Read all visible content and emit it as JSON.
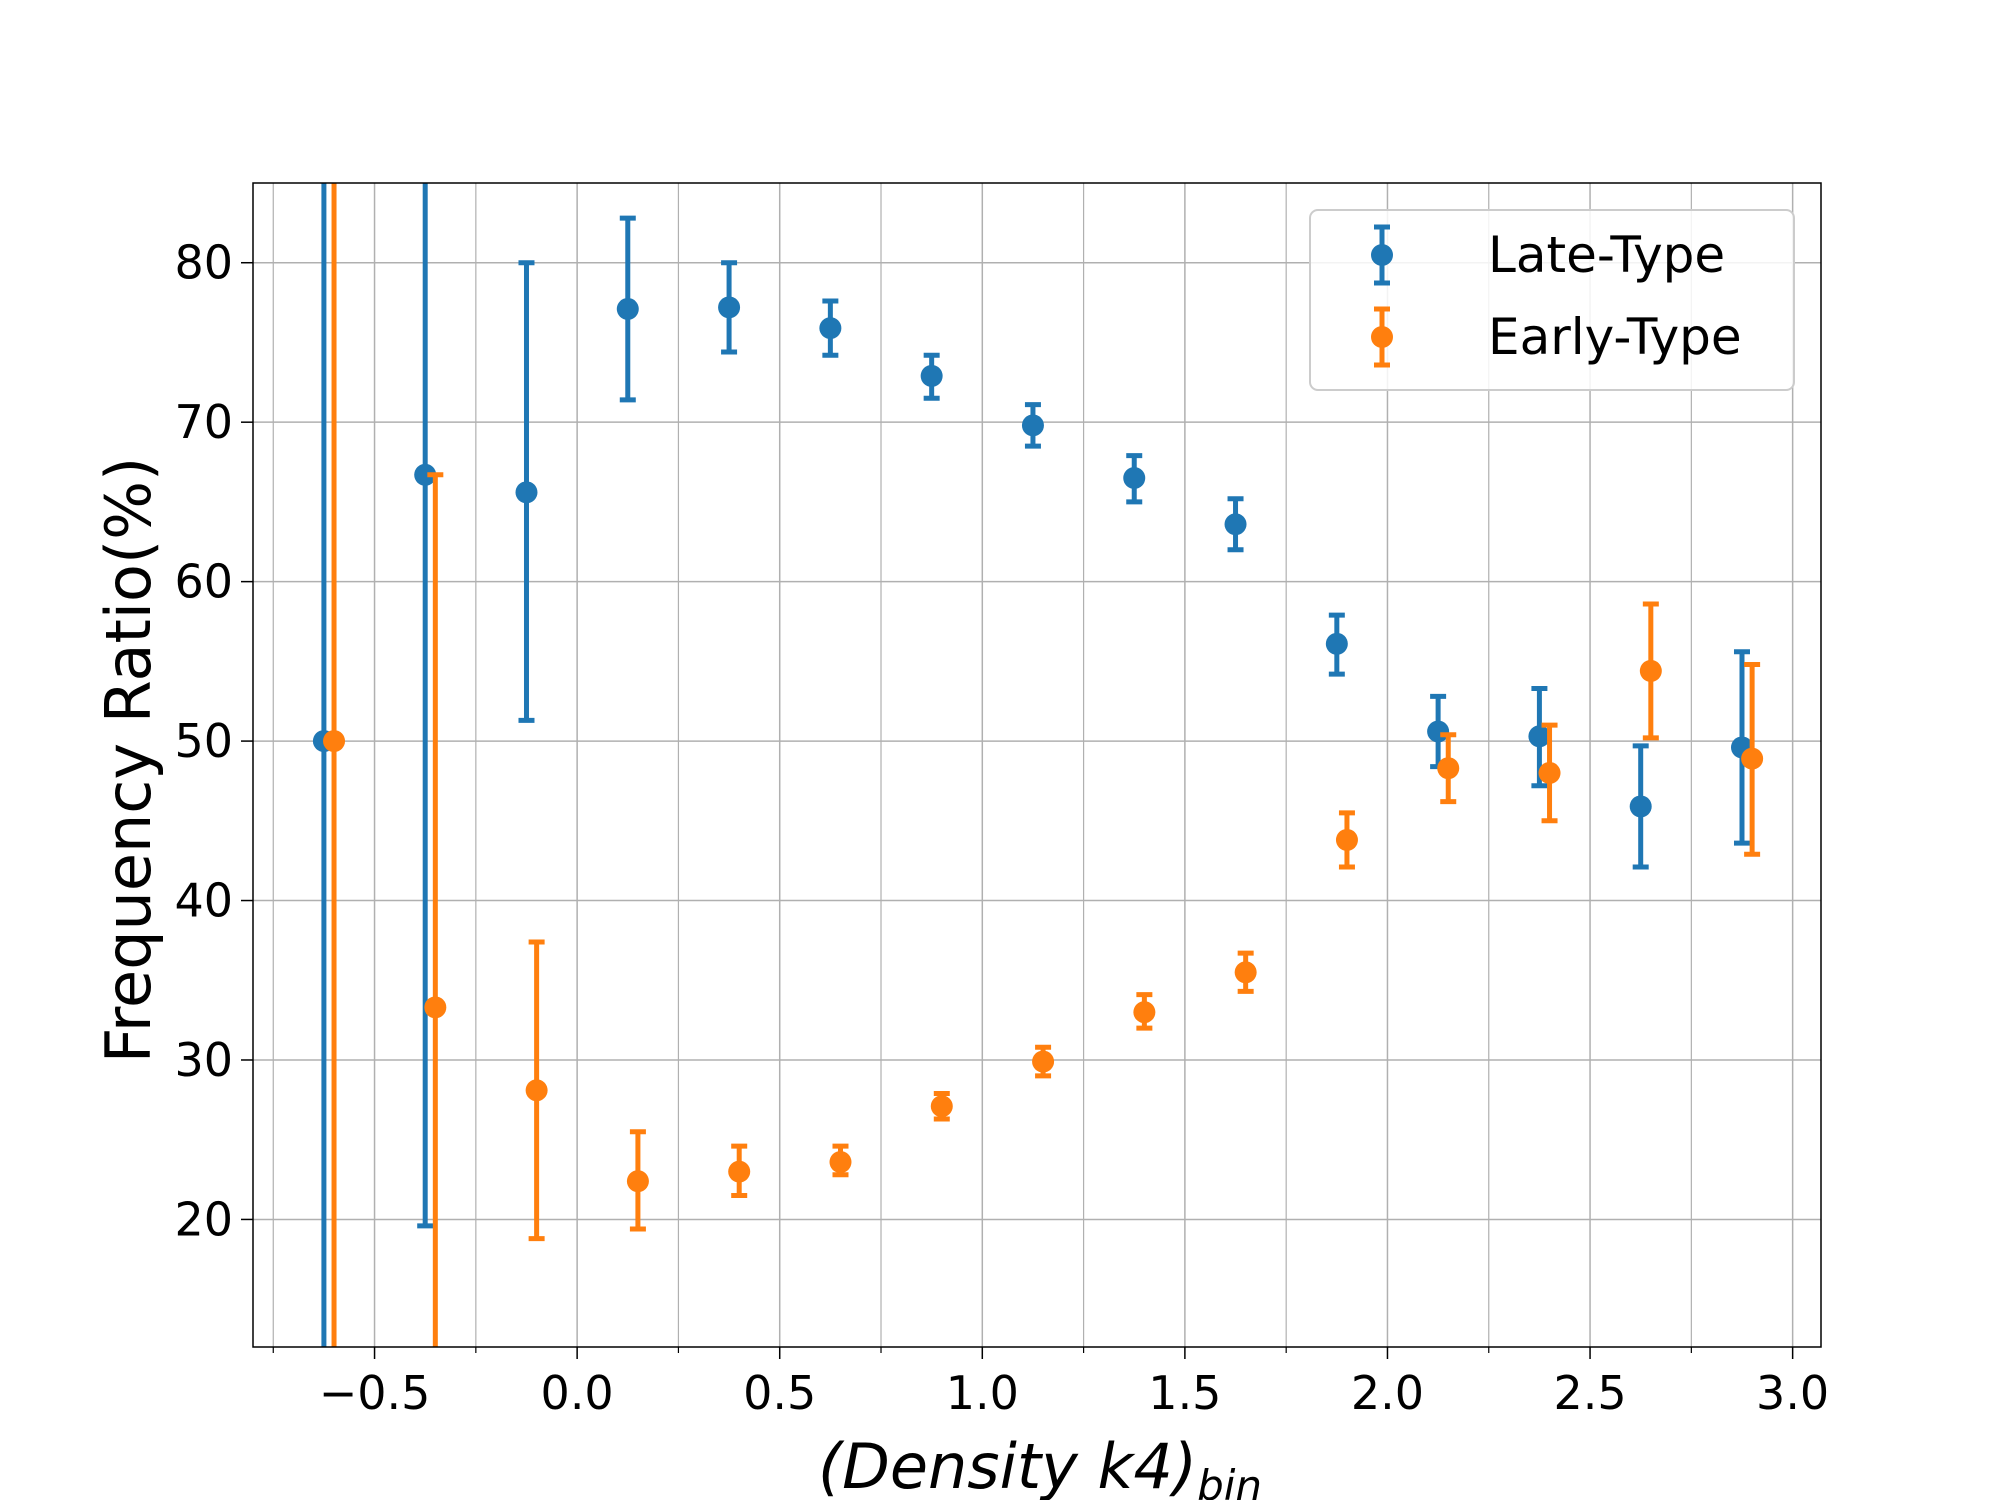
{
  "chart_data": {
    "type": "scatter",
    "title": "",
    "xlabel_main": "(Density k4)",
    "xlabel_sub": "bin",
    "ylabel": "Frequency Ratio(%)",
    "xlim": [
      -0.8,
      3.07
    ],
    "ylim": [
      12,
      85
    ],
    "grid": true,
    "legend_position": "top-right",
    "x_ticks": [
      -0.5,
      0.0,
      0.5,
      1.0,
      1.5,
      2.0,
      2.5,
      3.0
    ],
    "x_tick_labels": [
      "−0.5",
      "0.0",
      "0.5",
      "1.0",
      "1.5",
      "2.0",
      "2.5",
      "3.0"
    ],
    "y_ticks": [
      20,
      30,
      40,
      50,
      60,
      70,
      80
    ],
    "y_tick_labels": [
      "20",
      "30",
      "40",
      "50",
      "60",
      "70",
      "80"
    ],
    "series": [
      {
        "name": "Late-Type",
        "color": "#1f77b4",
        "x": [
          -0.625,
          -0.375,
          -0.125,
          0.125,
          0.375,
          0.625,
          0.875,
          1.125,
          1.375,
          1.625,
          1.875,
          2.125,
          2.375,
          2.625,
          2.875
        ],
        "y": [
          50.0,
          66.7,
          65.6,
          77.1,
          77.2,
          75.9,
          72.9,
          69.8,
          66.5,
          63.6,
          56.1,
          50.6,
          50.3,
          45.9,
          49.6
        ],
        "yerr_low": [
          null,
          19.6,
          51.3,
          71.4,
          74.4,
          74.2,
          71.5,
          68.5,
          65.0,
          62.0,
          54.2,
          48.4,
          47.2,
          42.1,
          43.6
        ],
        "yerr_high": [
          null,
          null,
          80.0,
          82.8,
          80.0,
          77.6,
          74.2,
          71.1,
          67.9,
          65.2,
          57.9,
          52.8,
          53.3,
          49.7,
          55.6
        ],
        "error_unbounded": [
          true,
          false,
          false,
          false,
          false,
          false,
          false,
          false,
          false,
          false,
          false,
          false,
          false,
          false,
          false
        ]
      },
      {
        "name": "Early-Type",
        "color": "#ff7f0e",
        "x": [
          -0.6,
          -0.35,
          -0.1,
          0.15,
          0.4,
          0.65,
          0.9,
          1.15,
          1.4,
          1.65,
          1.9,
          2.15,
          2.4,
          2.65,
          2.9
        ],
        "y": [
          50.0,
          33.3,
          28.1,
          22.4,
          23.0,
          23.6,
          27.1,
          29.9,
          33.0,
          35.5,
          43.8,
          48.3,
          48.0,
          54.4,
          48.9
        ],
        "yerr_low": [
          null,
          null,
          18.8,
          19.4,
          21.5,
          22.8,
          26.3,
          29.0,
          32.0,
          34.3,
          42.1,
          46.2,
          45.0,
          50.2,
          42.9
        ],
        "yerr_high": [
          null,
          66.7,
          37.4,
          25.5,
          24.6,
          24.6,
          27.9,
          30.8,
          34.1,
          36.7,
          45.5,
          50.4,
          51.0,
          58.6,
          54.8
        ],
        "error_unbounded": [
          true,
          false,
          false,
          false,
          false,
          false,
          false,
          false,
          false,
          false,
          false,
          false,
          false,
          false,
          false
        ]
      }
    ]
  }
}
